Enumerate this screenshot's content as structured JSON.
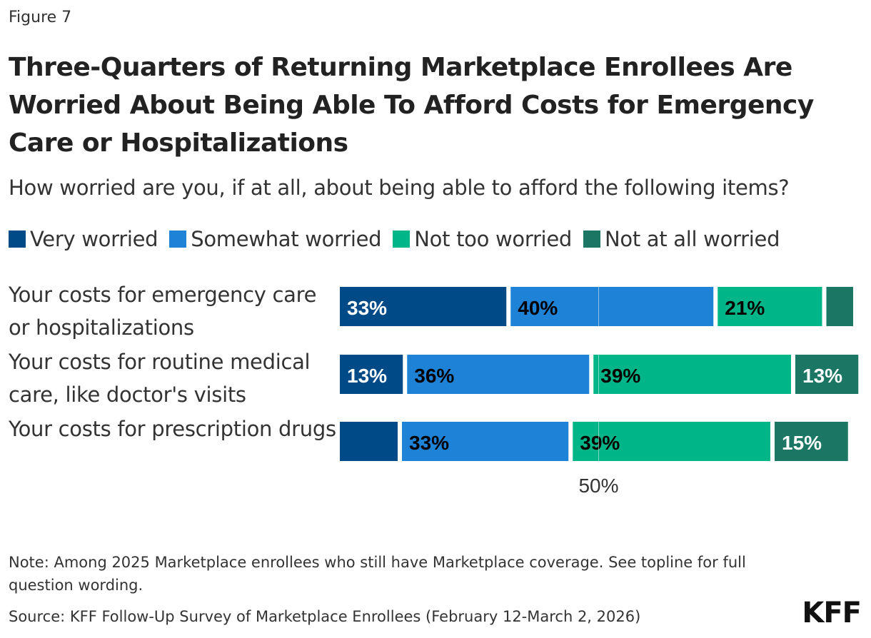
{
  "figure_label": "Figure 7",
  "chart_data": {
    "type": "bar",
    "orientation": "horizontal",
    "stacked": true,
    "title": "Three-Quarters of Returning Marketplace Enrollees Are Worried About Being Able To Afford Costs for Emergency Care or Hospitalizations",
    "subtitle": "How worried are you, if at all, about being able to afford the following items?",
    "categories": [
      "Your costs for emergency care or hospitalizations",
      "Your costs for routine medical care, like doctor's visits",
      "Your costs for prescription drugs"
    ],
    "series": [
      {
        "name": "Very worried",
        "color": "#004a87",
        "values": [
          33,
          13,
          12
        ],
        "labels": [
          "33%",
          "13%",
          ""
        ],
        "label_color": "#ffffff"
      },
      {
        "name": "Somewhat worried",
        "color": "#1e82d6",
        "values": [
          40,
          36,
          33
        ],
        "labels": [
          "40%",
          "36%",
          "33%"
        ],
        "label_color": "#000000"
      },
      {
        "name": "Not too worried",
        "color": "#00b587",
        "values": [
          21,
          39,
          39
        ],
        "labels": [
          "21%",
          "39%",
          "39%"
        ],
        "label_color": "#000000"
      },
      {
        "name": "Not at all worried",
        "color": "#1b7763",
        "values": [
          6,
          13,
          15
        ],
        "labels": [
          "",
          "13%",
          "15%"
        ],
        "label_color": "#ffffff"
      }
    ],
    "xlim": [
      0,
      100
    ],
    "reference_line": {
      "value": 50,
      "label": "50%"
    },
    "legend_position": "top",
    "grid": false
  },
  "notes": {
    "note": "Note: Among 2025 Marketplace enrollees who still have Marketplace coverage. See topline for full question wording.",
    "source": "Source: KFF Follow-Up Survey of Marketplace Enrollees (February 12-March 2, 2026)"
  },
  "logo": "KFF"
}
